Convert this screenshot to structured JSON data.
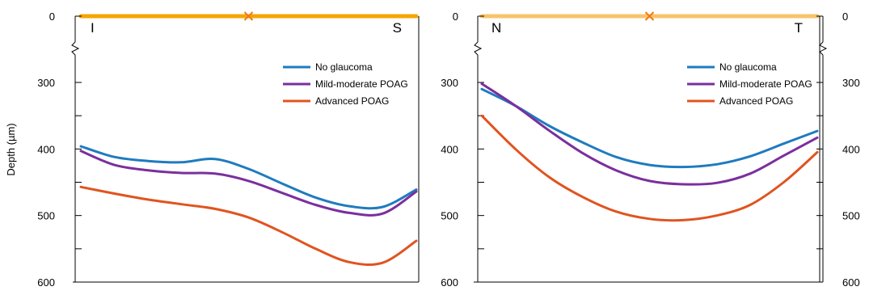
{
  "ylabel": "Depth (µm)",
  "colors": {
    "no_glaucoma": "#1f7bbf",
    "mild_moderate": "#7b2f9e",
    "advanced": "#e0541f",
    "bar_left": "#f5a500",
    "bar_right": "#f7c46a",
    "marker": "#f07a1a",
    "axis": "#000000"
  },
  "chart_data": [
    {
      "type": "line",
      "panel": "left",
      "ylabel": "Depth (µm)",
      "ylim": [
        600,
        0
      ],
      "y_axis_break": [
        0,
        300
      ],
      "y_ticks": [
        0,
        300,
        400,
        500,
        600
      ],
      "x_end_labels": [
        "I",
        "S"
      ],
      "x": [
        0,
        0.1,
        0.2,
        0.3,
        0.4,
        0.5,
        0.6,
        0.7,
        0.8,
        0.9,
        1.0
      ],
      "legend": {
        "placement": "top-right",
        "entries": [
          "No glaucoma",
          "Mild-moderate POAG",
          "Advanced POAG"
        ]
      },
      "series": [
        {
          "name": "No glaucoma",
          "values": [
            396,
            412,
            418,
            420,
            415,
            430,
            452,
            473,
            486,
            487,
            461
          ]
        },
        {
          "name": "Mild-moderate POAG",
          "values": [
            403,
            424,
            432,
            436,
            437,
            448,
            466,
            484,
            496,
            497,
            464
          ]
        },
        {
          "name": "Advanced POAG",
          "values": [
            457,
            467,
            476,
            483,
            490,
            503,
            525,
            550,
            570,
            571,
            538
          ]
        }
      ]
    },
    {
      "type": "line",
      "panel": "right",
      "ylabel": "",
      "ylim": [
        600,
        0
      ],
      "y_axis_break": [
        0,
        300
      ],
      "y_ticks": [
        0,
        300,
        400,
        500,
        600
      ],
      "x_end_labels": [
        "N",
        "T"
      ],
      "x": [
        0,
        0.1,
        0.2,
        0.3,
        0.4,
        0.5,
        0.6,
        0.7,
        0.8,
        0.9,
        1.0
      ],
      "legend": {
        "placement": "top-right",
        "entries": [
          "No glaucoma",
          "Mild-moderate POAG",
          "Advanced POAG"
        ]
      },
      "series": [
        {
          "name": "No glaucoma",
          "values": [
            310,
            335,
            365,
            390,
            412,
            424,
            427,
            423,
            411,
            392,
            373
          ]
        },
        {
          "name": "Mild-moderate POAG",
          "values": [
            302,
            335,
            372,
            406,
            432,
            448,
            453,
            451,
            437,
            410,
            383
          ]
        },
        {
          "name": "Advanced POAG",
          "values": [
            350,
            400,
            442,
            472,
            494,
            505,
            507,
            500,
            484,
            450,
            405
          ]
        }
      ]
    }
  ]
}
